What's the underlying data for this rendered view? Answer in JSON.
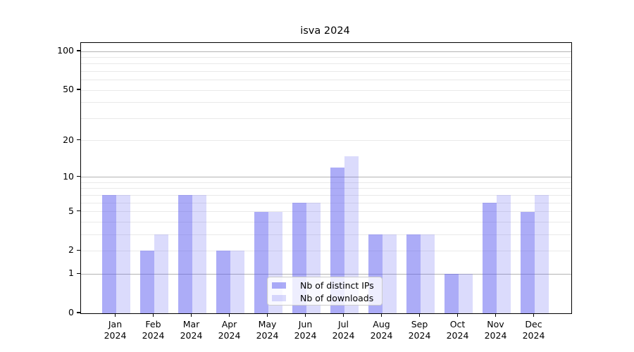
{
  "title": "isva 2024",
  "chart_data": {
    "type": "bar",
    "title": "isva 2024",
    "yscale": "log1p",
    "grid": true,
    "ylim": [
      0,
      117
    ],
    "y_ticks": [
      0,
      1,
      2,
      5,
      10,
      20,
      50,
      100
    ],
    "y_major_gridlines": [
      1,
      10,
      100
    ],
    "y_minor_gridlines": [
      2,
      3,
      4,
      5,
      6,
      7,
      8,
      9,
      20,
      30,
      40,
      50,
      60,
      70,
      80,
      90
    ],
    "categories": [
      "Jan 2024",
      "Feb 2024",
      "Mar 2024",
      "Apr 2024",
      "May 2024",
      "Jun 2024",
      "Jul 2024",
      "Aug 2024",
      "Sep 2024",
      "Oct 2024",
      "Nov 2024",
      "Dec 2024"
    ],
    "series": [
      {
        "name": "Nb of distinct IPs",
        "color": "rgba(90,90,240,0.5)",
        "values": [
          7,
          2,
          7,
          2,
          5,
          6,
          12,
          3,
          3,
          1,
          6,
          5
        ]
      },
      {
        "name": "Nb of downloads",
        "color": "rgba(90,90,240,0.22)",
        "values": [
          7,
          3,
          7,
          2,
          5,
          6,
          15,
          3,
          3,
          1,
          7,
          7
        ]
      }
    ],
    "legend_position": "lower center",
    "colors": {
      "major_grid": "#b4b4b4",
      "minor_grid": "#e9e9e9",
      "spine": "#000000",
      "background": "#ffffff"
    }
  }
}
